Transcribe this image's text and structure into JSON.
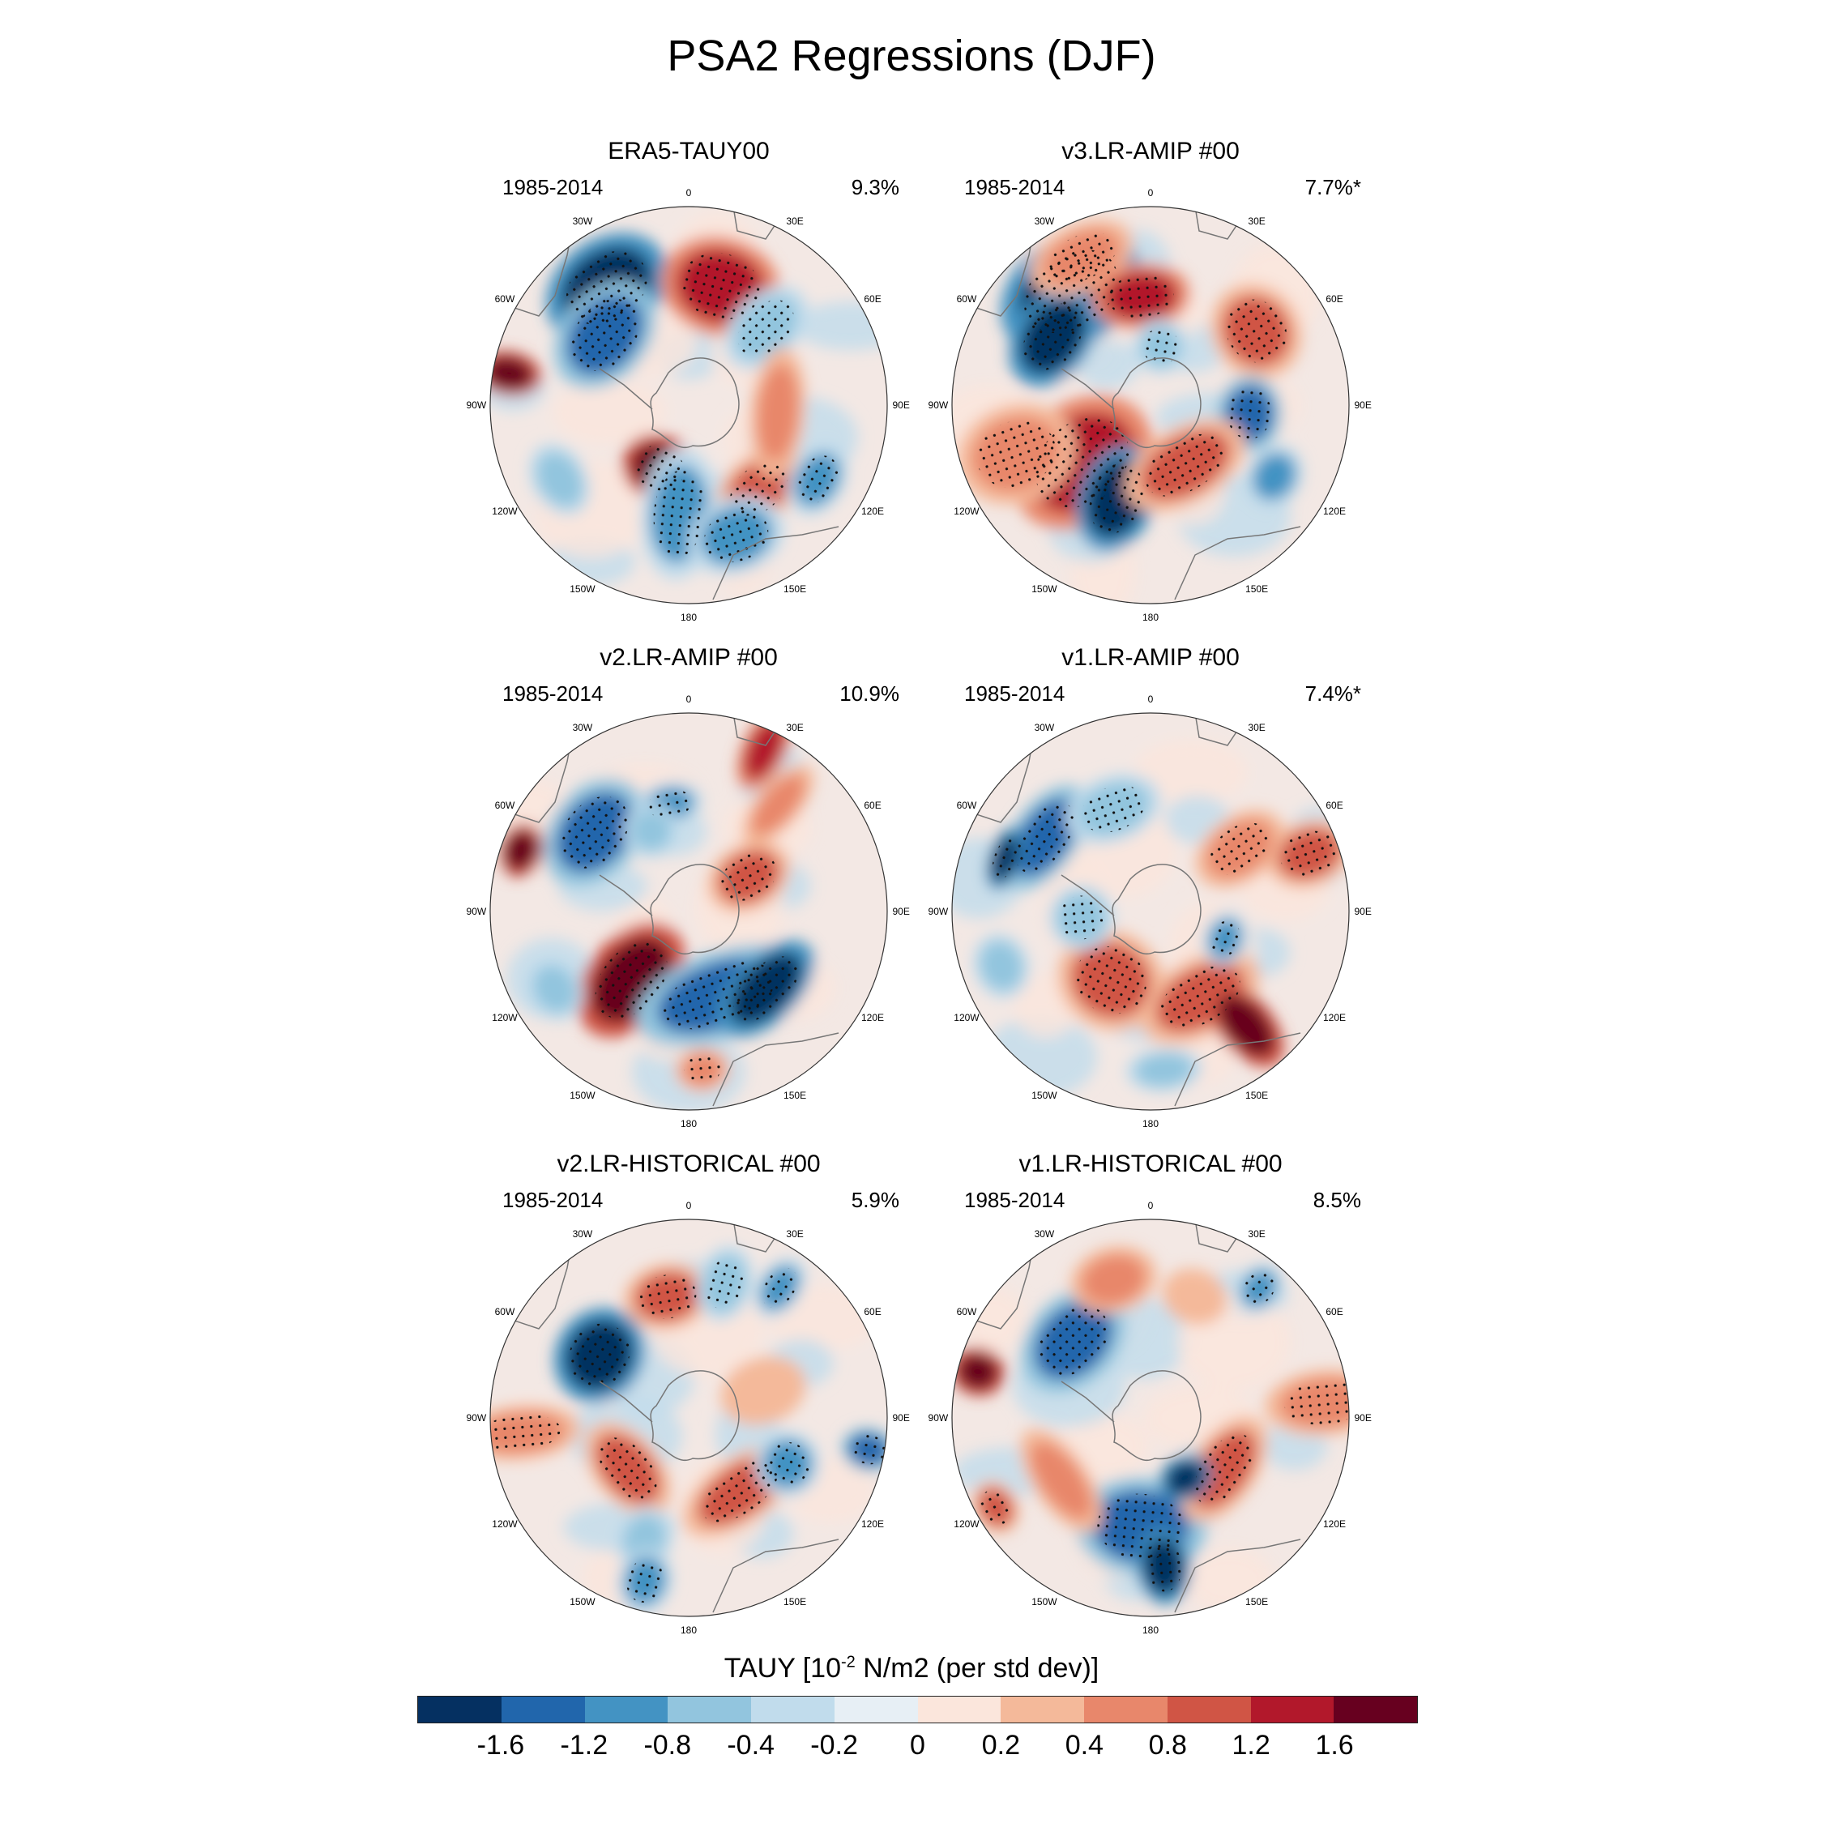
{
  "title": "PSA2 Regressions (DJF)",
  "lon_labels": [
    "0",
    "30E",
    "60E",
    "90E",
    "120E",
    "150E",
    "180",
    "150W",
    "120W",
    "90W",
    "60W",
    "30W"
  ],
  "panels": [
    {
      "title": "ERA5-TAUY00",
      "period": "1985-2014",
      "variance": "9.3%"
    },
    {
      "title": "v3.LR-AMIP  #00",
      "period": "1985-2014",
      "variance": "7.7%*"
    },
    {
      "title": "v2.LR-AMIP  #00",
      "period": "1985-2014",
      "variance": "10.9%"
    },
    {
      "title": "v1.LR-AMIP  #00",
      "period": "1985-2014",
      "variance": "7.4%*"
    },
    {
      "title": "v2.LR-HISTORICAL  #00",
      "period": "1985-2014",
      "variance": "5.9%"
    },
    {
      "title": "v1.LR-HISTORICAL  #00",
      "period": "1985-2014",
      "variance": "8.5%"
    }
  ],
  "colorbar": {
    "title_main": "TAUY [10",
    "title_exp": "-2",
    "title_rest": " N/m2 (per std dev)]",
    "colors": [
      "#053061",
      "#2166ac",
      "#4393c3",
      "#92c5de",
      "#c1dcec",
      "#e7eff5",
      "#fbe6dc",
      "#f4b99a",
      "#e8876b",
      "#d05545",
      "#b2182b",
      "#67001f"
    ],
    "ticks": [
      "-1.6",
      "-1.2",
      "-0.8",
      "-0.4",
      "-0.2",
      "0",
      "0.2",
      "0.4",
      "0.8",
      "1.2",
      "1.6"
    ]
  }
}
